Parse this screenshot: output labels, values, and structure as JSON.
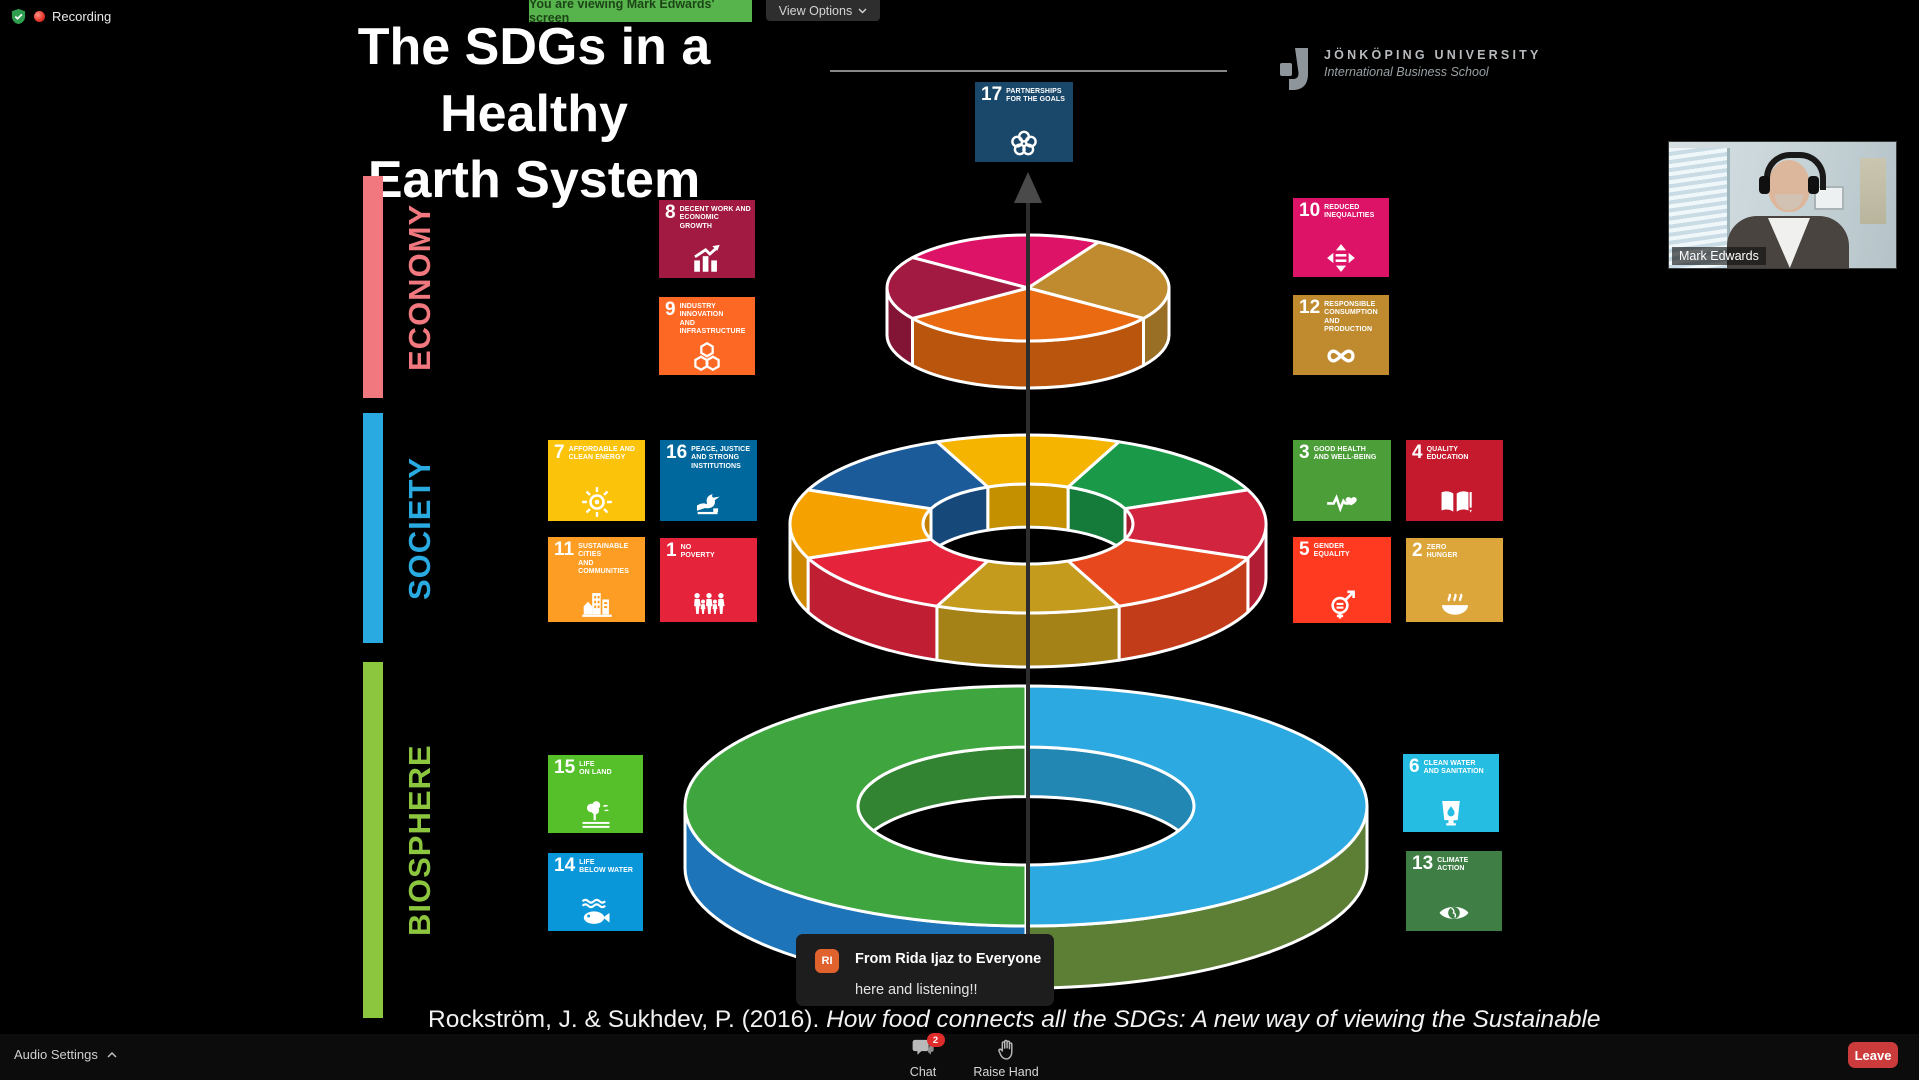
{
  "top_bar": {
    "recording_label": "Recording",
    "banner_text": "You are viewing Mark Edwards' screen",
    "banner_color": "#57b44c",
    "view_options_label": "View Options"
  },
  "participant": {
    "name": "Mark Edwards"
  },
  "chat_popup": {
    "avatar_initials": "RI",
    "avatar_color": "#e0622d",
    "from_line": "From Rida Ijaz to Everyone",
    "message": "here and listening!!"
  },
  "bottom_bar": {
    "audio_settings_label": "Audio Settings",
    "chat_label": "Chat",
    "chat_badge": "2",
    "raise_hand_label": "Raise Hand",
    "leave_label": "Leave",
    "leave_color": "#cc3b3b"
  },
  "slide": {
    "title_line1": "The SDGs in a Healthy",
    "title_line2": "Earth System",
    "university_name": "JÖNKÖPING UNIVERSITY",
    "university_school": "International Business School",
    "citation_plain": "Rockström, J. & Sukhdev, P. (2016). ",
    "citation_italic": "How food connects all the SDGs: A new way of viewing the Sustainable",
    "layers": [
      {
        "id": "economy",
        "label": "ECONOMY",
        "color": "#f0787e"
      },
      {
        "id": "society",
        "label": "SOCIETY",
        "color": "#29abe2"
      },
      {
        "id": "biosphere",
        "label": "BIOSPHERE",
        "color": "#8cc63f"
      }
    ],
    "sdg_tiles": [
      {
        "id": 17,
        "num": "17",
        "title": "PARTNERSHIPS\nFOR THE GOALS",
        "color": "#19486a",
        "icon": "partnership-flower-icon"
      },
      {
        "id": 8,
        "num": "8",
        "title": "DECENT WORK AND\nECONOMIC GROWTH",
        "color": "#a21942",
        "icon": "growth-chart-icon"
      },
      {
        "id": 9,
        "num": "9",
        "title": "INDUSTRY INNOVATION\nAND INFRASTRUCTURE",
        "color": "#fd6925",
        "icon": "cubes-icon"
      },
      {
        "id": 10,
        "num": "10",
        "title": "REDUCED\nINEQUALITIES",
        "color": "#dd1367",
        "icon": "equality-arrows-icon"
      },
      {
        "id": 12,
        "num": "12",
        "title": "RESPONSIBLE\nCONSUMPTION\nAND PRODUCTION",
        "color": "#bf8b2e",
        "icon": "infinity-icon"
      },
      {
        "id": 7,
        "num": "7",
        "title": "AFFORDABLE AND\nCLEAN ENERGY",
        "color": "#fcc30b",
        "icon": "sun-icon"
      },
      {
        "id": 16,
        "num": "16",
        "title": "PEACE, JUSTICE\nAND STRONG\nINSTITUTIONS",
        "color": "#00689d",
        "icon": "dove-icon"
      },
      {
        "id": 11,
        "num": "11",
        "title": "SUSTAINABLE CITIES\nAND COMMUNITIES",
        "color": "#fd9d24",
        "icon": "city-icon"
      },
      {
        "id": 1,
        "num": "1",
        "title": "NO\nPOVERTY",
        "color": "#e5243b",
        "icon": "family-icon"
      },
      {
        "id": 3,
        "num": "3",
        "title": "GOOD HEALTH\nAND WELL-BEING",
        "color": "#4c9f38",
        "icon": "ekg-heart-icon"
      },
      {
        "id": 4,
        "num": "4",
        "title": "QUALITY\nEDUCATION",
        "color": "#c5192d",
        "icon": "book-icon"
      },
      {
        "id": 5,
        "num": "5",
        "title": "GENDER\nEQUALITY",
        "color": "#ff3a21",
        "icon": "gender-icon"
      },
      {
        "id": 2,
        "num": "2",
        "title": "ZERO\nHUNGER",
        "color": "#dda63a",
        "icon": "bowl-icon"
      },
      {
        "id": 15,
        "num": "15",
        "title": "LIFE\nON LAND",
        "color": "#56c02b",
        "icon": "tree-icon"
      },
      {
        "id": 14,
        "num": "14",
        "title": "LIFE\nBELOW WATER",
        "color": "#0a97d9",
        "icon": "fish-icon"
      },
      {
        "id": 6,
        "num": "6",
        "title": "CLEAN WATER\nAND SANITATION",
        "color": "#26bde2",
        "icon": "water-glass-icon"
      },
      {
        "id": 13,
        "num": "13",
        "title": "CLIMATE\nACTION",
        "color": "#3f7e44",
        "icon": "eye-globe-icon"
      }
    ],
    "cake": {
      "economy_segments": [
        {
          "name": "magenta",
          "color": "#dd1367"
        },
        {
          "name": "ochre",
          "color": "#bf8b2e"
        },
        {
          "name": "orange",
          "color": "#e96a10"
        },
        {
          "name": "maroon",
          "color": "#a21942"
        }
      ],
      "society_segments": [
        {
          "name": "yellow",
          "color": "#f5b400"
        },
        {
          "name": "green",
          "color": "#1a9a48"
        },
        {
          "name": "crimson",
          "color": "#d2233f"
        },
        {
          "name": "orange-red",
          "color": "#e8481e"
        },
        {
          "name": "mustard",
          "color": "#c49b1d"
        },
        {
          "name": "red",
          "color": "#e5243b"
        },
        {
          "name": "amber",
          "color": "#f5a200"
        },
        {
          "name": "blue",
          "color": "#1c5b99"
        }
      ],
      "biosphere": {
        "top_green": "#3fa53f",
        "top_blue": "#2ba9e0",
        "side_blue": "#1d74b8",
        "side_olive": "#5c7e35"
      }
    }
  }
}
